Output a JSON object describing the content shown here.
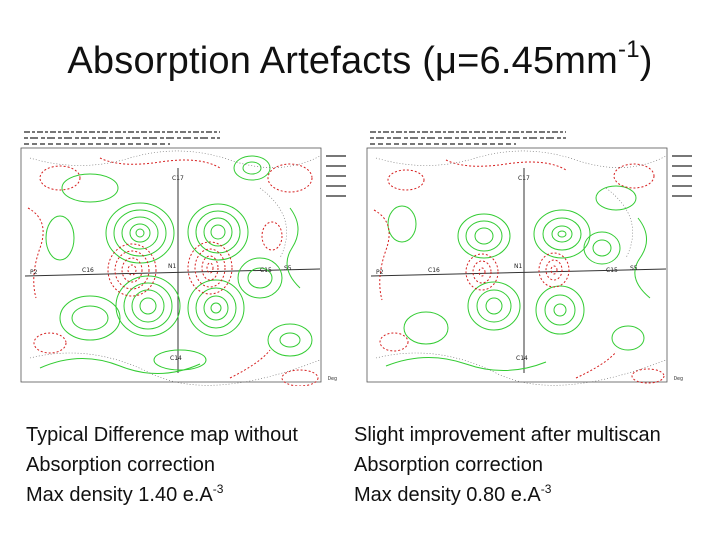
{
  "title": {
    "text": "Absorption Artefacts (μ=6.45mm",
    "superscript": "-1",
    "closing": ")"
  },
  "maps": [
    {
      "labels": [
        "C17",
        "P2",
        "C16",
        "N1",
        "C15",
        "S5",
        "C14"
      ],
      "deg_label": "Deg"
    },
    {
      "labels": [
        "C17",
        "P2",
        "C16",
        "N1",
        "C15",
        "S5",
        "C14"
      ],
      "deg_label": "Deg"
    }
  ],
  "captions": {
    "left": {
      "line1": "Typical  Difference map without",
      "line2": "Absorption correction",
      "line3_prefix": "Max density 1.40 e.A",
      "line3_sup": "-3"
    },
    "right": {
      "line1": "Slight improvement after multiscan",
      "line2": "Absorption correction",
      "line3_prefix": "Max density 0.80 e.A",
      "line3_sup": "-3"
    }
  },
  "colors": {
    "positive_contour": "#33cc33",
    "negative_contour": "#d62020",
    "zero_contour": "#444444"
  }
}
